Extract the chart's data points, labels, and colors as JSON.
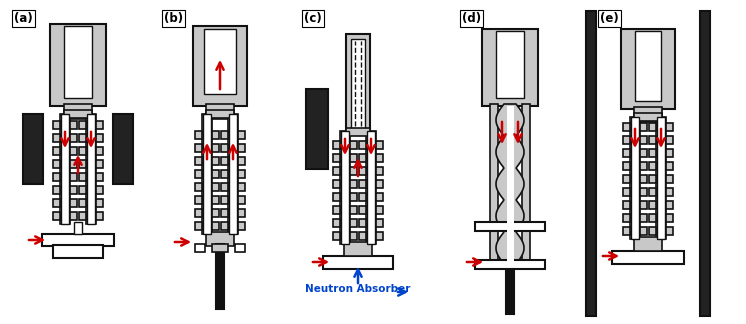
{
  "background": "#ffffff",
  "labels": [
    "(a)",
    "(b)",
    "(c)",
    "(d)",
    "(e)"
  ],
  "neutron_label": "Neutron Absorber",
  "RED": "#cc0000",
  "BLUE": "#0044cc",
  "GR": "#c8c8c8",
  "DK": "#111111",
  "fig_w": 7.46,
  "fig_h": 3.24,
  "dpi": 100
}
